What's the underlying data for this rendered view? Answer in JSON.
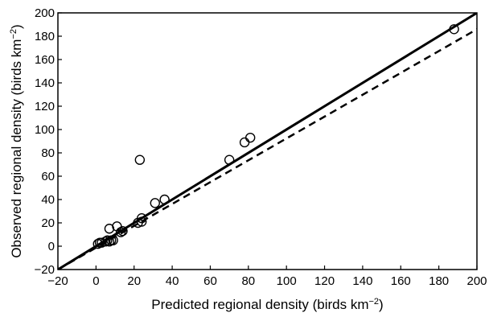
{
  "chart_data": {
    "type": "scatter",
    "xlabel": "Predicted regional density  (birds km",
    "ylabel": "Observed regional density  (birds km",
    "unit_superscript": "−2",
    "unit_close": ")",
    "xlim": [
      -20,
      200
    ],
    "ylim": [
      -20,
      200
    ],
    "xticks": [
      -20,
      0,
      20,
      40,
      60,
      80,
      100,
      120,
      140,
      160,
      180,
      200
    ],
    "yticks": [
      -20,
      0,
      20,
      40,
      60,
      80,
      100,
      120,
      140,
      160,
      180,
      200
    ],
    "xtick_labels": [
      "−20",
      "0",
      "20",
      "40",
      "60",
      "80",
      "100",
      "120",
      "140",
      "160",
      "180",
      "200"
    ],
    "ytick_labels": [
      "−20",
      "0",
      "20",
      "40",
      "60",
      "80",
      "100",
      "120",
      "140",
      "160",
      "180",
      "200"
    ],
    "grid": false,
    "points": [
      {
        "x": 1,
        "y": 2
      },
      {
        "x": 2,
        "y": 3
      },
      {
        "x": 3,
        "y": 3
      },
      {
        "x": 5,
        "y": 4
      },
      {
        "x": 6,
        "y": 5
      },
      {
        "x": 7,
        "y": 4
      },
      {
        "x": 8,
        "y": 5
      },
      {
        "x": 9,
        "y": 5
      },
      {
        "x": 7,
        "y": 15
      },
      {
        "x": 11,
        "y": 17
      },
      {
        "x": 13,
        "y": 12
      },
      {
        "x": 14,
        "y": 13
      },
      {
        "x": 22,
        "y": 20
      },
      {
        "x": 24,
        "y": 24
      },
      {
        "x": 24,
        "y": 21
      },
      {
        "x": 23,
        "y": 74
      },
      {
        "x": 31,
        "y": 37
      },
      {
        "x": 36,
        "y": 40
      },
      {
        "x": 70,
        "y": 74
      },
      {
        "x": 78,
        "y": 89
      },
      {
        "x": 81,
        "y": 93
      },
      {
        "x": 188,
        "y": 186
      }
    ],
    "lines": [
      {
        "style": "solid",
        "x": [
          -20,
          200
        ],
        "y": [
          -20,
          200
        ]
      },
      {
        "style": "dashed",
        "x": [
          -20,
          200
        ],
        "y": [
          -20,
          186
        ]
      }
    ]
  }
}
